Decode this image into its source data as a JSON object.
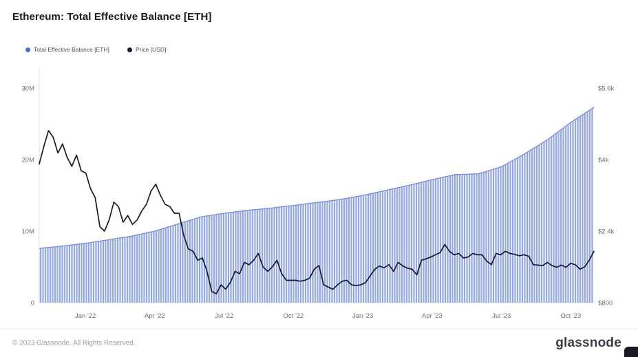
{
  "header": {
    "title": "Ethereum: Total Effective Balance [ETH]"
  },
  "legend": [
    {
      "label": "Total Effective Balance [ETH]",
      "color": "#4a6ce8"
    },
    {
      "label": "Price [USD]",
      "color": "#1b1b2f"
    }
  ],
  "footer": {
    "copyright": "© 2023 Glassnode. All Rights Reserved.",
    "brand": "glassnode"
  },
  "colors": {
    "bar": "#93a6f0",
    "bar_edge": "#7489ec",
    "price_line": "#191929",
    "axis_line": "#dcdcdc",
    "tick_text": "#6e6e6e"
  },
  "chart_data": {
    "type": "bar",
    "title": "Ethereum: Total Effective Balance [ETH]",
    "x_unit": "months since Nov '21",
    "x_range_months": 24,
    "x_ticks": [
      {
        "t": 2,
        "label": "Jan '22"
      },
      {
        "t": 5,
        "label": "Apr '22"
      },
      {
        "t": 8,
        "label": "Jul '22"
      },
      {
        "t": 11,
        "label": "Oct '22"
      },
      {
        "t": 14,
        "label": "Jan '23"
      },
      {
        "t": 17,
        "label": "Apr '23"
      },
      {
        "t": 20,
        "label": "Jul '23"
      },
      {
        "t": 23,
        "label": "Oct '23"
      }
    ],
    "left_axis": {
      "unit": "ETH",
      "range": [
        0,
        30
      ],
      "ticks": [
        {
          "v": 0,
          "label": "0"
        },
        {
          "v": 10,
          "label": "10M"
        },
        {
          "v": 20,
          "label": "20M"
        },
        {
          "v": 30,
          "label": "30M"
        }
      ]
    },
    "right_axis": {
      "unit": "USD",
      "range": [
        800,
        5600
      ],
      "ticks": [
        {
          "v": 800,
          "label": "$800"
        },
        {
          "v": 2400,
          "label": "$2.4k"
        },
        {
          "v": 4000,
          "label": "$4k"
        },
        {
          "v": 5600,
          "label": "$5.6k"
        }
      ]
    },
    "series": [
      {
        "name": "Total Effective Balance [ETH]",
        "type": "bar",
        "axis": "left",
        "unit": "M ETH",
        "color": "#93a6f0",
        "edge_color": "#7489ec",
        "monthly_values": [
          7.6,
          7.9,
          8.3,
          8.8,
          9.3,
          10.0,
          11.0,
          12.0,
          12.5,
          12.9,
          13.2,
          13.6,
          14.0,
          14.4,
          15.0,
          15.7,
          16.4,
          17.2,
          17.9,
          18.0,
          19.0,
          20.8,
          22.8,
          25.2,
          27.3
        ]
      },
      {
        "name": "Price [USD]",
        "type": "line",
        "axis": "right",
        "unit": "USD",
        "color": "#191929",
        "values": [
          3900,
          4300,
          4650,
          4500,
          4150,
          4350,
          4050,
          3850,
          4100,
          3750,
          3700,
          3350,
          3150,
          2500,
          2400,
          2650,
          3050,
          2950,
          2600,
          2750,
          2550,
          2650,
          2850,
          3000,
          3300,
          3450,
          3200,
          3000,
          2950,
          2800,
          2800,
          2300,
          2000,
          1950,
          1750,
          1800,
          1500,
          1050,
          1000,
          1200,
          1100,
          1250,
          1500,
          1450,
          1700,
          1650,
          1750,
          1900,
          1600,
          1500,
          1600,
          1750,
          1450,
          1300,
          1300,
          1300,
          1280,
          1300,
          1350,
          1550,
          1630,
          1200,
          1150,
          1100,
          1200,
          1280,
          1300,
          1200,
          1180,
          1200,
          1250,
          1400,
          1550,
          1620,
          1580,
          1650,
          1500,
          1700,
          1620,
          1570,
          1550,
          1420,
          1750,
          1780,
          1820,
          1870,
          1920,
          2100,
          1950,
          1870,
          1900,
          1800,
          1820,
          1900,
          1870,
          1870,
          1730,
          1650,
          1900,
          1870,
          1950,
          1900,
          1880,
          1850,
          1870,
          1840,
          1650,
          1640,
          1630,
          1700,
          1630,
          1590,
          1640,
          1590,
          1680,
          1650,
          1550,
          1600,
          1750,
          1950
        ]
      }
    ]
  }
}
